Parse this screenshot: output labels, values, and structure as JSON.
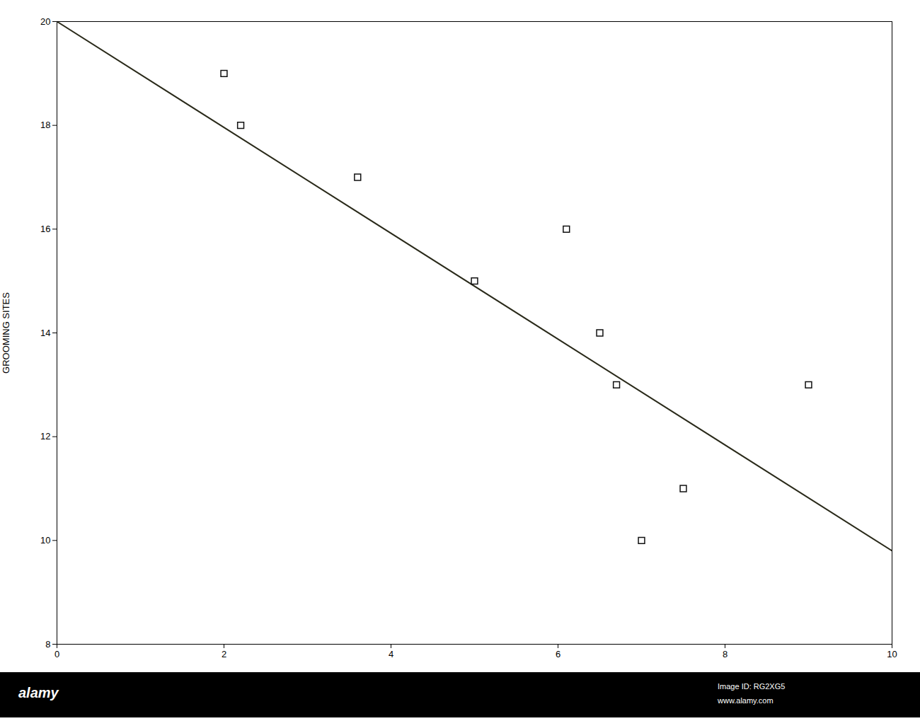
{
  "chart_data": {
    "type": "scatter",
    "ylabel": "GROOMING SITES",
    "series": [
      {
        "type": "line",
        "x": [
          0.0,
          10.0
        ],
        "values": [
          20.0,
          9.8
        ],
        "color": "#2a2a1a"
      },
      {
        "type": "scatter",
        "x": [
          2.0,
          2.2,
          3.6,
          5.0,
          6.1,
          6.5,
          6.7,
          7.0,
          7.5,
          9.0
        ],
        "values": [
          19.0,
          18.0,
          17.0,
          15.0,
          16.0,
          14.0,
          13.0,
          10.0,
          11.0,
          13.0
        ],
        "color": "white",
        "marker": "square"
      }
    ],
    "xlim": [
      0,
      10
    ],
    "ylim": [
      8,
      20
    ],
    "xticks": [
      0,
      2,
      4,
      6,
      8,
      10
    ],
    "yticks": [
      8,
      10,
      12,
      14,
      16,
      18,
      20
    ],
    "grid": false,
    "annotations": [
      "alamy",
      "Image ID: RG2XG5",
      "www.alamy.com"
    ]
  }
}
